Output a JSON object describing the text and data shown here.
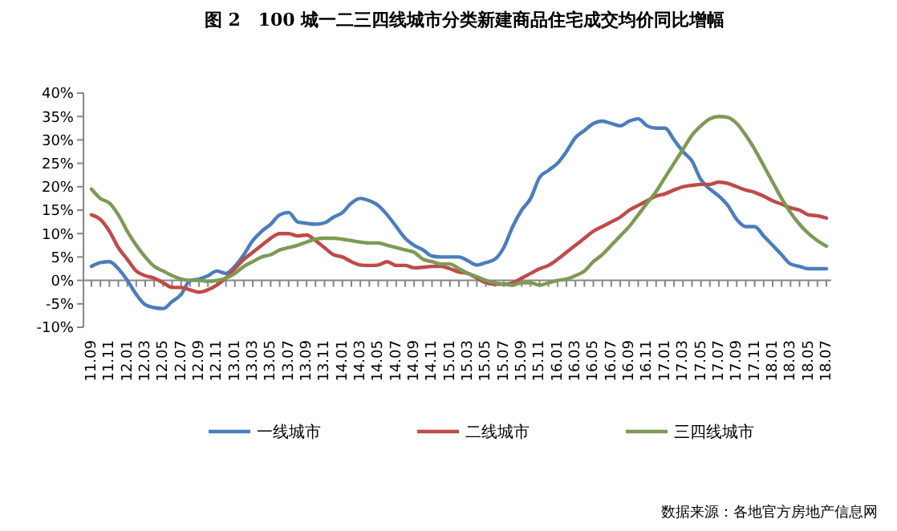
{
  "chart_data": {
    "type": "line",
    "title": "图 2　100 城一二三四线城市分类新建商品住宅成交均价同比增幅",
    "categories": [
      "11.09",
      null,
      "11.11",
      null,
      "12.01",
      null,
      "12.03",
      null,
      "12.05",
      null,
      "12.07",
      null,
      "12.09",
      null,
      "12.11",
      null,
      "13.01",
      null,
      "13.03",
      null,
      "13.05",
      null,
      "13.07",
      null,
      "13.09",
      null,
      "13.11",
      null,
      "14.01",
      null,
      "14.03",
      null,
      "14.05",
      null,
      "14.07",
      null,
      "14.09",
      null,
      "14.11",
      null,
      "15.01",
      null,
      "15.03",
      null,
      "15.05",
      null,
      "15.07",
      null,
      "15.09",
      null,
      "15.11",
      null,
      "16.01",
      null,
      "16.03",
      null,
      "16.05",
      null,
      "16.07",
      null,
      "16.09",
      null,
      "16.11",
      null,
      "17.01",
      null,
      "17.03",
      null,
      "17.05",
      null,
      "17.07",
      null,
      "17.09",
      null,
      "17.11",
      null,
      "18.01",
      null,
      "18.03",
      null,
      "18.05",
      null,
      "18.07"
    ],
    "series": [
      {
        "name": "一线城市",
        "color": "#4a7ebb",
        "values": [
          3,
          3.8,
          4,
          2.5,
          0,
          -3,
          -5.2,
          -5.8,
          -6,
          -4.5,
          -3,
          0,
          0.3,
          1,
          2,
          1.5,
          3,
          5.5,
          8.5,
          10.5,
          12,
          14,
          14.5,
          12.5,
          12.2,
          12,
          12.3,
          13.5,
          14.5,
          16.5,
          17.5,
          17,
          16,
          14,
          11.5,
          9,
          7.5,
          6.5,
          5.2,
          5,
          5,
          5,
          4.2,
          3.3,
          3.8,
          4.5,
          7,
          11.5,
          15,
          17.5,
          22,
          23.5,
          25,
          27.5,
          30.5,
          32,
          33.5,
          34,
          33.5,
          33,
          34,
          34.5,
          33,
          32.5,
          32.5,
          30,
          27.5,
          25.5,
          21.5,
          19.5,
          18,
          16,
          13,
          11.5,
          11.5,
          9.5,
          7.5,
          5.5,
          3.5,
          3,
          2.5,
          2.5,
          2.5
        ]
      },
      {
        "name": "二线城市",
        "color": "#be4b48",
        "values": [
          14,
          13,
          10.5,
          7,
          4.5,
          2,
          1,
          0.5,
          -0.5,
          -1.5,
          -1.5,
          -2,
          -2.5,
          -2,
          -1,
          0.5,
          2.5,
          4.5,
          6,
          7.5,
          9,
          10,
          10,
          9.5,
          9.7,
          8.5,
          7,
          5.5,
          5,
          4,
          3.3,
          3.2,
          3.3,
          4,
          3.2,
          3.2,
          2.7,
          2.8,
          3,
          3,
          2.5,
          1.8,
          1.5,
          0.5,
          -0.5,
          -0.8,
          -0.8,
          -0.5,
          0.5,
          1.5,
          2.5,
          3.2,
          4.5,
          6,
          7.5,
          9,
          10.5,
          11.5,
          12.5,
          13.5,
          15,
          16,
          17,
          18,
          18.5,
          19.3,
          20,
          20.3,
          20.5,
          20.5,
          21,
          20.7,
          20,
          19.3,
          18.8,
          18,
          17,
          16.3,
          15.5,
          15,
          14,
          13.8,
          13.3
        ]
      },
      {
        "name": "三四线城市",
        "color": "#7d9a55",
        "values": [
          19.5,
          17.5,
          16.5,
          14,
          10.5,
          7.5,
          5,
          3,
          2,
          1,
          0.3,
          0,
          0,
          -0.2,
          0,
          0.5,
          1.5,
          3,
          4,
          5,
          5.5,
          6.5,
          7,
          7.5,
          8.2,
          8.8,
          9,
          9,
          8.8,
          8.5,
          8.2,
          8,
          8,
          7.5,
          7,
          6.5,
          6,
          4.5,
          4,
          3.5,
          3.5,
          2.5,
          1.5,
          0.8,
          0,
          -0.5,
          -0.8,
          -1,
          -0.5,
          -0.5,
          -1,
          -0.5,
          0,
          0.3,
          1,
          2,
          4,
          5.5,
          7.5,
          9.5,
          11.5,
          14,
          16.5,
          19,
          22,
          25,
          28,
          31,
          33,
          34.5,
          35,
          34.8,
          33.5,
          31,
          28,
          24.5,
          21,
          17.5,
          14.5,
          12,
          10,
          8.5,
          7.3
        ]
      }
    ],
    "ylim": [
      -10,
      40
    ],
    "yticks": [
      {
        "value": -10,
        "label": "-10%"
      },
      {
        "value": -5,
        "label": "-5%"
      },
      {
        "value": 0,
        "label": "0%"
      },
      {
        "value": 5,
        "label": "5%"
      },
      {
        "value": 10,
        "label": "10%"
      },
      {
        "value": 15,
        "label": "15%"
      },
      {
        "value": 20,
        "label": "20%"
      },
      {
        "value": 25,
        "label": "25%"
      },
      {
        "value": 30,
        "label": "30%"
      },
      {
        "value": 35,
        "label": "35%"
      },
      {
        "value": 40,
        "label": "40%"
      }
    ],
    "legend": "bottom",
    "marker": "none",
    "line_style": "solid",
    "annotations": [
      "数据来源：各地官方房地产信息网"
    ]
  }
}
